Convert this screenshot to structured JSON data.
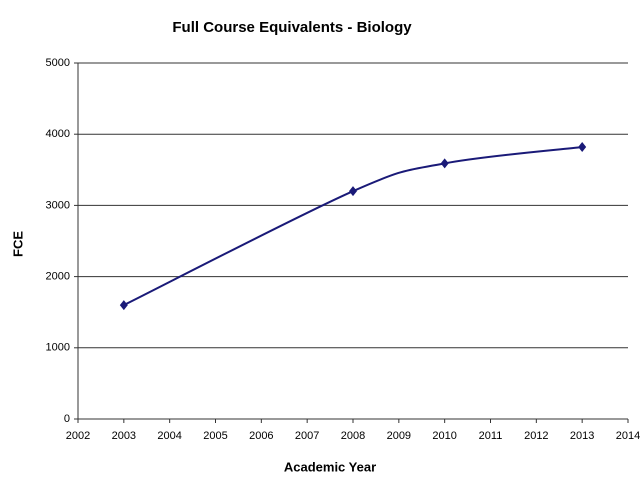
{
  "chart_data": {
    "type": "line",
    "title": "Full Course Equivalents - Biology",
    "x_label": "Academic Year",
    "y_label": "FCE",
    "x": [
      2003,
      2008,
      2010,
      2013
    ],
    "series": [
      {
        "name": "FCE",
        "color": "#1a1a78",
        "values": [
          1600,
          3200,
          3590,
          3820
        ]
      }
    ],
    "xlim": [
      2002,
      2014
    ],
    "xticks": [
      2002,
      2003,
      2004,
      2005,
      2006,
      2007,
      2008,
      2009,
      2010,
      2011,
      2012,
      2013,
      2014
    ],
    "ylim": [
      0,
      5000
    ],
    "yticks": [
      0,
      1000,
      2000,
      3000,
      4000,
      5000
    ],
    "grid": true,
    "smooth": true
  }
}
